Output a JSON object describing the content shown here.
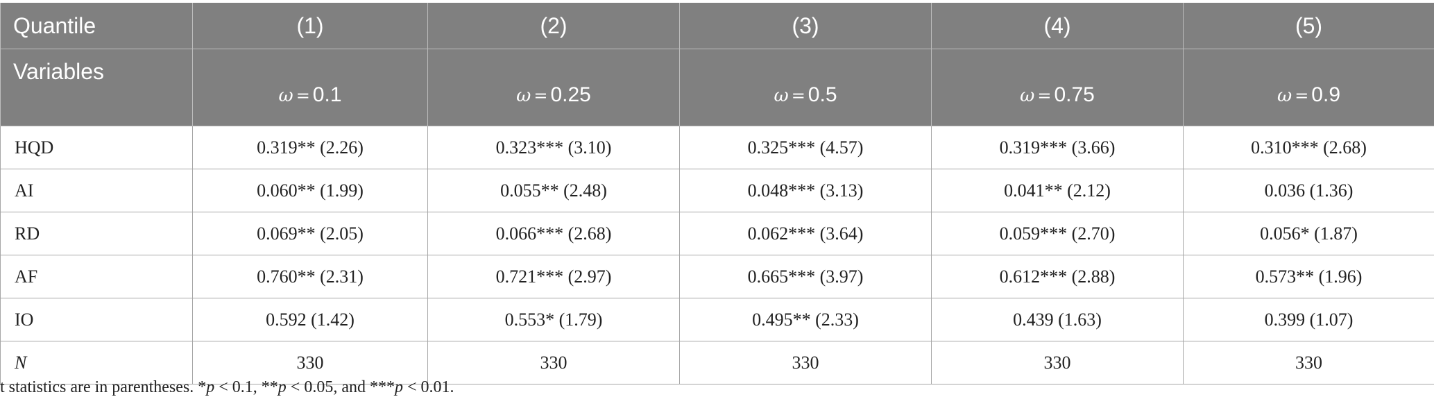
{
  "header": {
    "row1_label": "Quantile",
    "row2_label": "Variables",
    "columns": [
      {
        "num": "(1)",
        "omega_symbol": "ω",
        "eq": "=",
        "omega_value": "0.1"
      },
      {
        "num": "(2)",
        "omega_symbol": "ω",
        "eq": "=",
        "omega_value": "0.25"
      },
      {
        "num": "(3)",
        "omega_symbol": "ω",
        "eq": "=",
        "omega_value": "0.5"
      },
      {
        "num": "(4)",
        "omega_symbol": "ω",
        "eq": "=",
        "omega_value": "0.75"
      },
      {
        "num": "(5)",
        "omega_symbol": "ω",
        "eq": "=",
        "omega_value": "0.9"
      }
    ]
  },
  "rows": [
    {
      "label": "HQD",
      "cells": [
        "0.319** (2.26)",
        "0.323*** (3.10)",
        "0.325*** (4.57)",
        "0.319*** (3.66)",
        "0.310*** (2.68)"
      ]
    },
    {
      "label": "AI",
      "cells": [
        "0.060** (1.99)",
        "0.055** (2.48)",
        "0.048*** (3.13)",
        "0.041** (2.12)",
        "0.036 (1.36)"
      ]
    },
    {
      "label": "RD",
      "cells": [
        "0.069** (2.05)",
        "0.066*** (2.68)",
        "0.062*** (3.64)",
        "0.059*** (2.70)",
        "0.056* (1.87)"
      ]
    },
    {
      "label": "AF",
      "cells": [
        "0.760** (2.31)",
        "0.721*** (2.97)",
        "0.665*** (3.97)",
        "0.612*** (2.88)",
        "0.573** (1.96)"
      ]
    },
    {
      "label": "IO",
      "cells": [
        "0.592 (1.42)",
        "0.553* (1.79)",
        "0.495** (2.33)",
        "0.439 (1.63)",
        "0.399 (1.07)"
      ]
    },
    {
      "label": "N",
      "cells": [
        "330",
        "330",
        "330",
        "330",
        "330"
      ]
    }
  ],
  "note": {
    "lead": "t statistics are in parentheses. *",
    "p1": "p",
    "t1": " < 0.1, **",
    "p2": "p",
    "t2": " < 0.05, and ***",
    "p3": "p",
    "t3": " < 0.01."
  }
}
